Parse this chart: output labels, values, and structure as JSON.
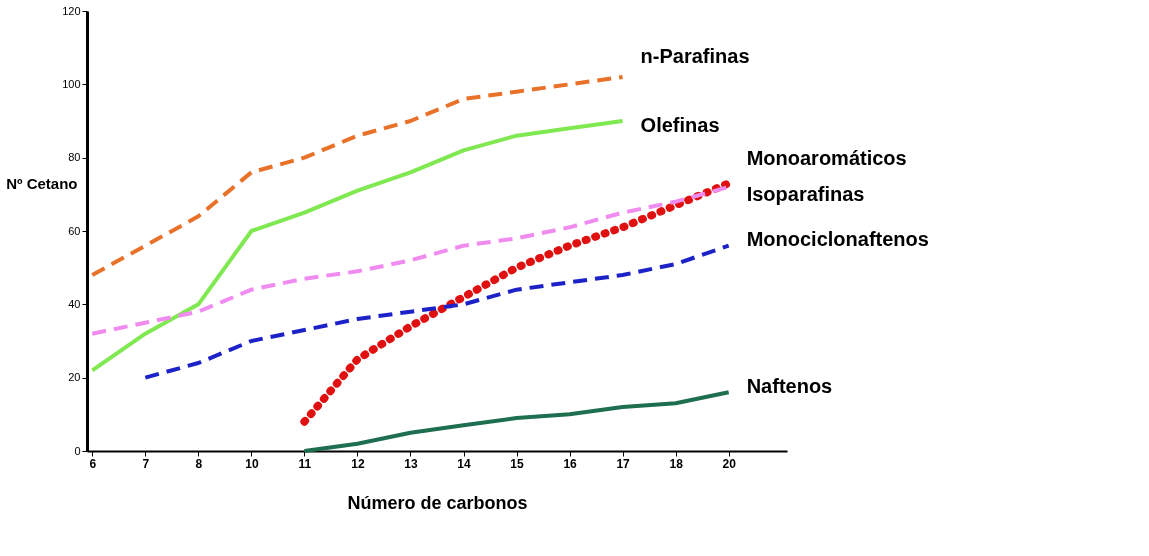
{
  "chart_data": {
    "type": "line",
    "xlabel": "Número de carbonos",
    "ylabel": "Nº Cetano",
    "categories": [
      "6",
      "7",
      "8",
      "10",
      "11",
      "12",
      "13",
      "14",
      "15",
      "16",
      "17",
      "18",
      "20"
    ],
    "ylim": [
      0,
      120
    ],
    "yticks": [
      0,
      20,
      40,
      60,
      80,
      100,
      120
    ],
    "grid": false,
    "marker": "none",
    "series": [
      {
        "name": "n-Parafinas",
        "color": "#e8722a",
        "line_style": "dashed",
        "values": [
          48,
          56,
          64,
          76,
          80,
          86,
          90,
          96,
          98,
          100,
          102,
          null,
          null
        ]
      },
      {
        "name": "Olefinas",
        "color": "#80e850",
        "line_style": "solid",
        "values": [
          22,
          32,
          40,
          60,
          65,
          71,
          76,
          82,
          86,
          88,
          90,
          null,
          null
        ]
      },
      {
        "name": "Monoaromáticos",
        "color": "#e01010",
        "line_style": "dotted",
        "values": [
          null,
          null,
          null,
          null,
          8,
          25,
          34,
          42,
          50,
          56,
          61,
          67,
          73
        ]
      },
      {
        "name": "Isoparafinas",
        "color": "#f08cf0",
        "line_style": "dashed",
        "values": [
          32,
          35,
          38,
          44,
          47,
          49,
          52,
          56,
          58,
          61,
          65,
          68,
          72
        ]
      },
      {
        "name": "Monociclonaftenos",
        "color": "#1c22c8",
        "line_style": "dashed",
        "values": [
          null,
          20,
          24,
          30,
          33,
          36,
          38,
          40,
          44,
          46,
          48,
          51,
          56
        ]
      },
      {
        "name": "Naftenos",
        "color": "#1e6e50",
        "line_style": "solid",
        "values": [
          null,
          null,
          null,
          null,
          0,
          2,
          5,
          7,
          9,
          10,
          12,
          13,
          16
        ]
      }
    ]
  }
}
